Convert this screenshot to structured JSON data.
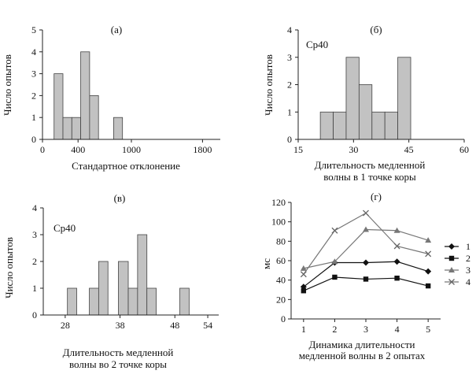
{
  "chart_data": [
    {
      "type": "bar",
      "panel": "(а)",
      "annotation": "",
      "xlabel": "Стандартное отклонение",
      "ylabel": "Число опытов",
      "xlim": [
        0,
        2000
      ],
      "ylim": [
        0,
        5
      ],
      "xticks": [
        0,
        400,
        1000,
        1800
      ],
      "xtick_labels": [
        "0",
        "400",
        "1000",
        "1800"
      ],
      "yticks": [
        0,
        1,
        2,
        3,
        4,
        5
      ],
      "bin_width": 100,
      "bins": [
        {
          "start": 130,
          "end": 230,
          "value": 3
        },
        {
          "start": 230,
          "end": 330,
          "value": 1
        },
        {
          "start": 330,
          "end": 430,
          "value": 1
        },
        {
          "start": 430,
          "end": 530,
          "value": 4
        },
        {
          "start": 530,
          "end": 630,
          "value": 2
        },
        {
          "start": 800,
          "end": 900,
          "value": 1
        }
      ]
    },
    {
      "type": "bar",
      "panel": "(б)",
      "annotation": "Ср40",
      "xlabel": "Длительность медленной волны в 1 точке коры",
      "ylabel": "Число опытов",
      "xlim": [
        15,
        60
      ],
      "ylim": [
        0,
        4
      ],
      "xticks": [
        15,
        30,
        45,
        60
      ],
      "xtick_labels": [
        "15",
        "30",
        "45",
        "60"
      ],
      "yticks": [
        0,
        1,
        2,
        3,
        4
      ],
      "bins": [
        {
          "start": 21,
          "end": 24.5,
          "value": 1
        },
        {
          "start": 24.5,
          "end": 28,
          "value": 1
        },
        {
          "start": 28,
          "end": 31.5,
          "value": 3
        },
        {
          "start": 31.5,
          "end": 35,
          "value": 2
        },
        {
          "start": 35,
          "end": 38.5,
          "value": 1
        },
        {
          "start": 38.5,
          "end": 42,
          "value": 1
        },
        {
          "start": 42,
          "end": 45.5,
          "value": 3
        }
      ]
    },
    {
      "type": "bar",
      "panel": "(в)",
      "annotation": "Ср40",
      "xlabel": "Длительность медленной волны во 2 точке коры",
      "ylabel": "Число опытов",
      "xlim": [
        24,
        56
      ],
      "ylim": [
        0,
        4
      ],
      "xticks": [
        28,
        38,
        48,
        54
      ],
      "xtick_labels": [
        "28",
        "38",
        "48",
        "54"
      ],
      "yticks": [
        0,
        1,
        2,
        3,
        4
      ],
      "bins": [
        {
          "start": 28.4,
          "end": 30.1,
          "value": 1
        },
        {
          "start": 32.4,
          "end": 34.1,
          "value": 1
        },
        {
          "start": 34.1,
          "end": 35.8,
          "value": 2
        },
        {
          "start": 37.7,
          "end": 39.5,
          "value": 2
        },
        {
          "start": 39.5,
          "end": 41.2,
          "value": 1
        },
        {
          "start": 41.2,
          "end": 42.9,
          "value": 3
        },
        {
          "start": 42.9,
          "end": 44.6,
          "value": 1
        },
        {
          "start": 48.9,
          "end": 50.6,
          "value": 1
        }
      ]
    },
    {
      "type": "line",
      "panel": "(г)",
      "xlabel": "Динамика длительности медленной волны в 2 опытах",
      "ylabel": "мс",
      "x": [
        1,
        2,
        3,
        4,
        5
      ],
      "xlim": [
        0.6,
        5.4
      ],
      "ylim": [
        0,
        120
      ],
      "yticks": [
        0,
        20,
        40,
        60,
        80,
        100,
        120
      ],
      "legend_position": "right",
      "series": [
        {
          "name": "1",
          "marker": "diamond",
          "values": [
            33,
            58,
            58,
            59,
            49
          ]
        },
        {
          "name": "2",
          "marker": "square",
          "values": [
            29,
            43,
            41,
            42,
            34
          ]
        },
        {
          "name": "3",
          "marker": "triangle",
          "values": [
            52,
            59,
            92,
            91,
            81
          ]
        },
        {
          "name": "4",
          "marker": "x",
          "values": [
            46,
            91,
            109,
            75,
            67
          ]
        }
      ]
    }
  ]
}
